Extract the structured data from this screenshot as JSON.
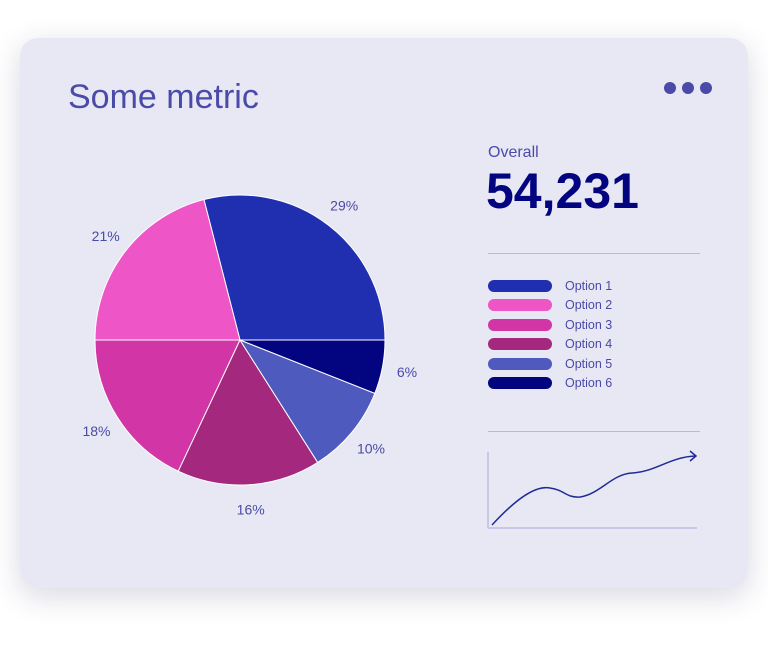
{
  "header": {
    "title": "Some metric",
    "menu_icon": "more-horizontal-icon"
  },
  "summary": {
    "label": "Overall",
    "value": "54,231"
  },
  "chart_data": {
    "type": "pie",
    "categories": [
      "Option 1",
      "Option 2",
      "Option 3",
      "Option 4",
      "Option 5",
      "Option 6"
    ],
    "values": [
      29,
      21,
      18,
      16,
      10,
      6
    ],
    "labels": [
      "29%",
      "21%",
      "18%",
      "16%",
      "10%",
      "6%"
    ],
    "colors": [
      "#1f2fb0",
      "#ee55c6",
      "#d236a6",
      "#a3287e",
      "#4f5abe",
      "#02057f"
    ],
    "legend": "right"
  },
  "legend": {
    "items": [
      {
        "label": "Option 1"
      },
      {
        "label": "Option 2"
      },
      {
        "label": "Option 3"
      },
      {
        "label": "Option 4"
      },
      {
        "label": "Option 5"
      },
      {
        "label": "Option 6"
      }
    ]
  },
  "sparkline": {
    "trend": "up",
    "color": "#1f2a96"
  }
}
